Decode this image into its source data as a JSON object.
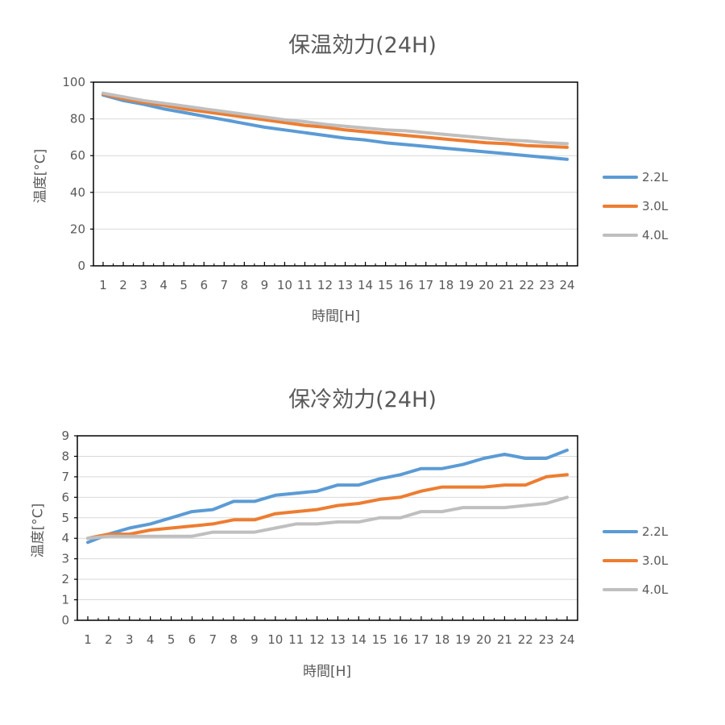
{
  "chart_data": [
    {
      "type": "line",
      "title": "保温効力(24H)",
      "xlabel": "時間[H]",
      "ylabel": "温度[°C]",
      "categories": [
        "1",
        "2",
        "3",
        "4",
        "5",
        "6",
        "7",
        "8",
        "9",
        "10",
        "11",
        "12",
        "13",
        "14",
        "15",
        "16",
        "17",
        "18",
        "19",
        "20",
        "21",
        "22",
        "23",
        "24"
      ],
      "ylim": [
        0,
        100
      ],
      "yticks": [
        0,
        20,
        40,
        60,
        80,
        100
      ],
      "grid": true,
      "legend": "right",
      "series": [
        {
          "name": "2.2L",
          "color": "#5b9bd5",
          "values": [
            93,
            90,
            88,
            85.5,
            83.5,
            81.5,
            79.5,
            77.5,
            75.5,
            74,
            72.5,
            71,
            69.5,
            68.5,
            67,
            66,
            65,
            64,
            63,
            62,
            61,
            60,
            59,
            58
          ]
        },
        {
          "name": "3.0L",
          "color": "#ed7d31",
          "values": [
            93.5,
            91,
            89,
            87.5,
            85.5,
            84,
            82.5,
            81,
            79.5,
            78,
            76.5,
            75.5,
            74,
            73,
            72,
            71,
            70,
            69,
            68,
            67,
            66.5,
            65.5,
            65,
            64.5
          ]
        },
        {
          "name": "4.0L",
          "color": "#bfbfbf",
          "values": [
            94,
            92,
            90,
            88.5,
            87,
            85.5,
            84,
            82.5,
            81,
            79.5,
            78.5,
            77,
            76,
            75,
            74,
            73.5,
            72.5,
            71.5,
            70.5,
            69.5,
            68.5,
            68,
            67,
            66.5
          ]
        }
      ]
    },
    {
      "type": "line",
      "title": "保冷効力(24H)",
      "xlabel": "時間[H]",
      "ylabel": "温度[°C]",
      "categories": [
        "1",
        "2",
        "3",
        "4",
        "5",
        "6",
        "7",
        "8",
        "9",
        "10",
        "11",
        "12",
        "13",
        "14",
        "15",
        "16",
        "17",
        "18",
        "19",
        "20",
        "21",
        "22",
        "23",
        "24"
      ],
      "ylim": [
        0,
        9
      ],
      "yticks": [
        0,
        1,
        2,
        3,
        4,
        5,
        6,
        7,
        8,
        9
      ],
      "grid": true,
      "legend": "right",
      "series": [
        {
          "name": "2.2L",
          "color": "#5b9bd5",
          "values": [
            3.8,
            4.2,
            4.5,
            4.7,
            5.0,
            5.3,
            5.4,
            5.8,
            5.8,
            6.1,
            6.2,
            6.3,
            6.6,
            6.6,
            6.9,
            7.1,
            7.4,
            7.4,
            7.6,
            7.9,
            8.1,
            7.9,
            7.9,
            8.3
          ]
        },
        {
          "name": "3.0L",
          "color": "#ed7d31",
          "values": [
            4.0,
            4.2,
            4.2,
            4.4,
            4.5,
            4.6,
            4.7,
            4.9,
            4.9,
            5.2,
            5.3,
            5.4,
            5.6,
            5.7,
            5.9,
            6.0,
            6.3,
            6.5,
            6.5,
            6.5,
            6.6,
            6.6,
            7.0,
            7.1
          ]
        },
        {
          "name": "4.0L",
          "color": "#bfbfbf",
          "values": [
            4.0,
            4.1,
            4.1,
            4.1,
            4.1,
            4.1,
            4.3,
            4.3,
            4.3,
            4.5,
            4.7,
            4.7,
            4.8,
            4.8,
            5.0,
            5.0,
            5.3,
            5.3,
            5.5,
            5.5,
            5.5,
            5.6,
            5.7,
            6.0
          ]
        }
      ]
    }
  ]
}
